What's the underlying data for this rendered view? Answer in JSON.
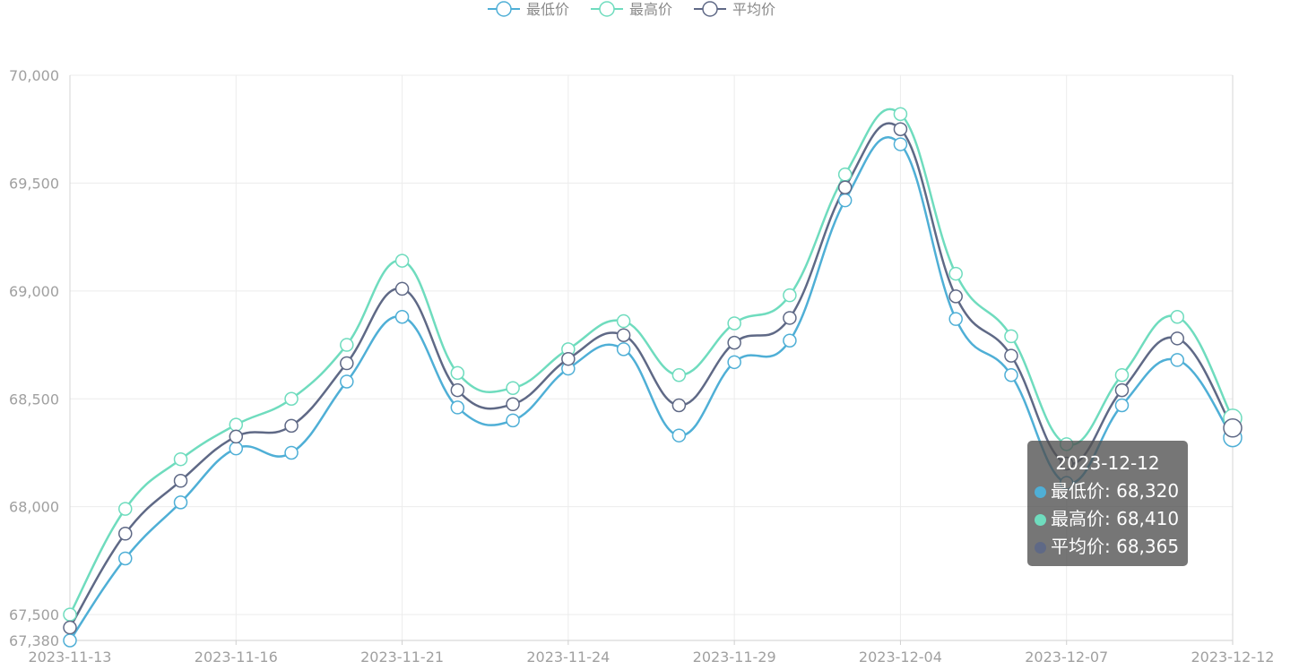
{
  "chart_data": {
    "type": "line",
    "title": "",
    "xlabel": "",
    "ylabel": "",
    "ylim": [
      67380,
      70000
    ],
    "y_ticks": [
      67380,
      67500,
      68000,
      68500,
      69000,
      69500,
      70000
    ],
    "y_tick_labels": [
      "67,380",
      "67,500",
      "68,000",
      "68,500",
      "69,000",
      "69,500",
      "70,000"
    ],
    "x_tick_labels": [
      "2023-11-13",
      "2023-11-16",
      "2023-11-21",
      "2023-11-24",
      "2023-11-29",
      "2023-12-04",
      "2023-12-07",
      "2023-12-12"
    ],
    "x_tick_every": 3,
    "smooth": true,
    "grid": true,
    "legend_position": "top-center",
    "x": [
      "2023-11-13",
      "2023-11-14",
      "2023-11-15",
      "2023-11-16",
      "2023-11-17",
      "2023-11-20",
      "2023-11-21",
      "2023-11-22",
      "2023-11-23",
      "2023-11-24",
      "2023-11-27",
      "2023-11-28",
      "2023-11-29",
      "2023-11-30",
      "2023-12-01",
      "2023-12-04",
      "2023-12-05",
      "2023-12-06",
      "2023-12-07",
      "2023-12-08",
      "2023-12-11",
      "2023-12-12"
    ],
    "series": [
      {
        "name": "最低价",
        "color": "#4fafd6",
        "values": [
          67380,
          67760,
          68020,
          68270,
          68250,
          68580,
          68880,
          68460,
          68400,
          68640,
          68730,
          68330,
          68670,
          68770,
          69420,
          69680,
          68870,
          68610,
          68110,
          68470,
          68680,
          68320
        ]
      },
      {
        "name": "最高价",
        "color": "#6fdcbe",
        "values": [
          67500,
          67990,
          68220,
          68380,
          68500,
          68750,
          69140,
          68620,
          68550,
          68730,
          68860,
          68610,
          68850,
          68980,
          69540,
          69820,
          69080,
          68790,
          68290,
          68610,
          68880,
          68410
        ]
      },
      {
        "name": "平均价",
        "color": "#5f6986",
        "values": [
          67440,
          67875,
          68120,
          68325,
          68375,
          68665,
          69010,
          68540,
          68475,
          68685,
          68795,
          68470,
          68760,
          68875,
          69480,
          69750,
          68975,
          68700,
          68200,
          68540,
          68780,
          68365
        ]
      }
    ]
  },
  "tooltip": {
    "date": "2023-12-12",
    "rows": [
      {
        "label": "最低价",
        "value": "68,320",
        "color": "#4fafd6"
      },
      {
        "label": "最高价",
        "value": "68,410",
        "color": "#6fdcbe"
      },
      {
        "label": "平均价",
        "value": "68,365",
        "color": "#5f6986"
      }
    ]
  }
}
